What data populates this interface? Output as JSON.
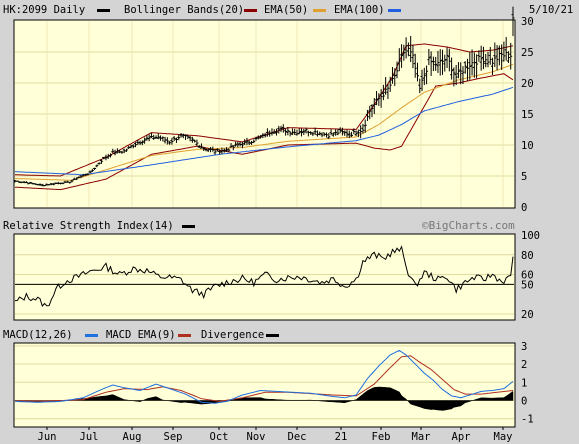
{
  "header": {
    "ticker": "HK:2099 Daily",
    "legend": [
      {
        "label": "Bollinger Bands(20)",
        "color": "#8b0000"
      },
      {
        "label": "EMA(50)",
        "color": "#e0a030"
      },
      {
        "label": "EMA(100)",
        "color": "#2060e0"
      }
    ],
    "date": "5/10/21"
  },
  "rsi_panel": {
    "title": "Relative Strength Index(14)",
    "credit": "©BigCharts.com"
  },
  "macd_panel": {
    "legend": [
      {
        "label": "MACD(12,26)",
        "color": "#2070e0"
      },
      {
        "label": "MACD EMA(9)",
        "color": "#b03020"
      },
      {
        "label": "Divergence",
        "color": "#000000"
      }
    ]
  },
  "colors": {
    "panel_bg": "#ffffd8",
    "frame_bg": "#d4d4d4",
    "price": "#000000",
    "bollinger": "#8b0000",
    "ema50": "#e0a030",
    "ema100": "#2060e0",
    "macd": "#2070e0",
    "signal": "#b03020"
  },
  "chart_data": [
    {
      "type": "line",
      "name": "price",
      "x_labels": [
        "Jun",
        "Jul",
        "Aug",
        "Sep",
        "Oct",
        "Nov",
        "Dec",
        "21",
        "Feb",
        "Mar",
        "Apr",
        "May"
      ],
      "y_ticks": [
        0,
        5,
        10,
        15,
        20,
        25,
        30
      ],
      "ylim": [
        0,
        30
      ],
      "close_anchors": [
        [
          0,
          4.2
        ],
        [
          6,
          3.9
        ],
        [
          12,
          3.5
        ],
        [
          18,
          3.8
        ],
        [
          24,
          4.0
        ],
        [
          28,
          4.8
        ],
        [
          33,
          5.5
        ],
        [
          38,
          7.5
        ],
        [
          43,
          8.8
        ],
        [
          48,
          9.0
        ],
        [
          53,
          10.2
        ],
        [
          58,
          11.0
        ],
        [
          63,
          11.3
        ],
        [
          68,
          10.5
        ],
        [
          73,
          11.5
        ],
        [
          78,
          10.8
        ],
        [
          83,
          9.5
        ],
        [
          88,
          9.0
        ],
        [
          93,
          9.2
        ],
        [
          98,
          10.0
        ],
        [
          103,
          10.5
        ],
        [
          108,
          11.2
        ],
        [
          113,
          12.3
        ],
        [
          118,
          12.5
        ],
        [
          123,
          12.0
        ],
        [
          128,
          12.3
        ],
        [
          133,
          12.0
        ],
        [
          138,
          11.6
        ],
        [
          143,
          12.1
        ],
        [
          148,
          11.8
        ],
        [
          153,
          12.5
        ],
        [
          156,
          15.5
        ],
        [
          160,
          17.5
        ],
        [
          164,
          19.0
        ],
        [
          167,
          21.0
        ],
        [
          170,
          24.0
        ],
        [
          172,
          26.0
        ],
        [
          175,
          24.0
        ],
        [
          178,
          19.0
        ],
        [
          182,
          23.5
        ],
        [
          186,
          23.0
        ],
        [
          190,
          24.0
        ],
        [
          194,
          21.0
        ],
        [
          198,
          22.5
        ],
        [
          202,
          23.5
        ],
        [
          206,
          24.0
        ],
        [
          210,
          23.5
        ],
        [
          214,
          24.5
        ],
        [
          218,
          24.5
        ],
        [
          219,
          30.5
        ]
      ],
      "ema50_anchors": [
        [
          0,
          4.6
        ],
        [
          25,
          4.3
        ],
        [
          40,
          6.0
        ],
        [
          60,
          8.3
        ],
        [
          80,
          9.3
        ],
        [
          100,
          9.6
        ],
        [
          120,
          10.6
        ],
        [
          150,
          11.3
        ],
        [
          160,
          13.3
        ],
        [
          170,
          16.0
        ],
        [
          180,
          18.5
        ],
        [
          195,
          20.5
        ],
        [
          210,
          21.8
        ],
        [
          219,
          23.0
        ]
      ],
      "ema100_anchors": [
        [
          0,
          5.7
        ],
        [
          30,
          5.2
        ],
        [
          60,
          6.8
        ],
        [
          90,
          8.5
        ],
        [
          120,
          9.7
        ],
        [
          150,
          10.7
        ],
        [
          160,
          11.6
        ],
        [
          170,
          13.3
        ],
        [
          180,
          15.5
        ],
        [
          195,
          17.0
        ],
        [
          210,
          18.2
        ],
        [
          219,
          19.3
        ]
      ],
      "bb_upper_anchors": [
        [
          0,
          5.2
        ],
        [
          20,
          5.0
        ],
        [
          40,
          8.0
        ],
        [
          60,
          12.0
        ],
        [
          80,
          11.5
        ],
        [
          100,
          10.5
        ],
        [
          120,
          12.8
        ],
        [
          150,
          12.5
        ],
        [
          158,
          16.5
        ],
        [
          166,
          21.0
        ],
        [
          172,
          26.0
        ],
        [
          180,
          26.3
        ],
        [
          190,
          25.8
        ],
        [
          200,
          25.0
        ],
        [
          210,
          25.3
        ],
        [
          219,
          26.0
        ]
      ],
      "bb_lower_anchors": [
        [
          0,
          3.2
        ],
        [
          20,
          2.8
        ],
        [
          40,
          4.5
        ],
        [
          60,
          8.5
        ],
        [
          80,
          9.8
        ],
        [
          100,
          8.5
        ],
        [
          120,
          10.0
        ],
        [
          150,
          10.3
        ],
        [
          158,
          9.5
        ],
        [
          165,
          9.2
        ],
        [
          170,
          9.8
        ],
        [
          175,
          13.0
        ],
        [
          185,
          19.5
        ],
        [
          195,
          20.0
        ],
        [
          205,
          20.8
        ],
        [
          215,
          21.5
        ],
        [
          219,
          20.5
        ]
      ]
    },
    {
      "type": "line",
      "name": "RSI(14)",
      "y_ticks": [
        20,
        50,
        60,
        80,
        100
      ],
      "ylim": [
        15,
        100
      ],
      "reference_line": 50,
      "anchors": [
        [
          0,
          32
        ],
        [
          5,
          38
        ],
        [
          10,
          35
        ],
        [
          14,
          27
        ],
        [
          18,
          45
        ],
        [
          22,
          53
        ],
        [
          28,
          58
        ],
        [
          33,
          63
        ],
        [
          40,
          68
        ],
        [
          46,
          60
        ],
        [
          52,
          66
        ],
        [
          58,
          64
        ],
        [
          63,
          58
        ],
        [
          68,
          57
        ],
        [
          73,
          55
        ],
        [
          78,
          44
        ],
        [
          83,
          40
        ],
        [
          88,
          48
        ],
        [
          93,
          52
        ],
        [
          100,
          56
        ],
        [
          105,
          52
        ],
        [
          110,
          60
        ],
        [
          115,
          55
        ],
        [
          120,
          57
        ],
        [
          125,
          58
        ],
        [
          130,
          55
        ],
        [
          135,
          52
        ],
        [
          140,
          56
        ],
        [
          145,
          48
        ],
        [
          150,
          55
        ],
        [
          153,
          73
        ],
        [
          158,
          80
        ],
        [
          162,
          76
        ],
        [
          166,
          83
        ],
        [
          170,
          85
        ],
        [
          173,
          62
        ],
        [
          176,
          48
        ],
        [
          180,
          62
        ],
        [
          186,
          55
        ],
        [
          190,
          58
        ],
        [
          194,
          45
        ],
        [
          198,
          52
        ],
        [
          202,
          57
        ],
        [
          206,
          55
        ],
        [
          210,
          60
        ],
        [
          214,
          53
        ],
        [
          218,
          57
        ],
        [
          219,
          78
        ]
      ]
    },
    {
      "type": "line",
      "name": "MACD(12,26)",
      "y_ticks": [
        -1,
        0,
        1,
        2,
        3
      ],
      "ylim": [
        -1.4,
        3.1
      ],
      "macd_anchors": [
        [
          0,
          -0.05
        ],
        [
          10,
          -0.1
        ],
        [
          20,
          -0.05
        ],
        [
          30,
          0.15
        ],
        [
          38,
          0.6
        ],
        [
          43,
          0.85
        ],
        [
          48,
          0.7
        ],
        [
          55,
          0.55
        ],
        [
          62,
          0.9
        ],
        [
          68,
          0.65
        ],
        [
          75,
          0.35
        ],
        [
          82,
          -0.1
        ],
        [
          88,
          -0.15
        ],
        [
          93,
          -0.05
        ],
        [
          100,
          0.3
        ],
        [
          108,
          0.55
        ],
        [
          115,
          0.5
        ],
        [
          122,
          0.45
        ],
        [
          130,
          0.4
        ],
        [
          138,
          0.25
        ],
        [
          145,
          0.15
        ],
        [
          150,
          0.3
        ],
        [
          155,
          1.2
        ],
        [
          160,
          1.9
        ],
        [
          165,
          2.5
        ],
        [
          169,
          2.75
        ],
        [
          172,
          2.5
        ],
        [
          176,
          2.0
        ],
        [
          180,
          1.5
        ],
        [
          184,
          1.1
        ],
        [
          188,
          0.6
        ],
        [
          192,
          0.25
        ],
        [
          196,
          0.15
        ],
        [
          200,
          0.3
        ],
        [
          205,
          0.5
        ],
        [
          210,
          0.55
        ],
        [
          215,
          0.65
        ],
        [
          219,
          1.05
        ]
      ],
      "signal_anchors": [
        [
          0,
          -0.02
        ],
        [
          15,
          -0.03
        ],
        [
          30,
          0.05
        ],
        [
          40,
          0.45
        ],
        [
          48,
          0.65
        ],
        [
          58,
          0.6
        ],
        [
          65,
          0.75
        ],
        [
          73,
          0.55
        ],
        [
          82,
          0.1
        ],
        [
          90,
          -0.05
        ],
        [
          100,
          0.15
        ],
        [
          110,
          0.45
        ],
        [
          120,
          0.45
        ],
        [
          130,
          0.38
        ],
        [
          140,
          0.3
        ],
        [
          150,
          0.25
        ],
        [
          158,
          0.9
        ],
        [
          165,
          1.8
        ],
        [
          170,
          2.4
        ],
        [
          174,
          2.45
        ],
        [
          178,
          2.1
        ],
        [
          183,
          1.7
        ],
        [
          188,
          1.15
        ],
        [
          193,
          0.6
        ],
        [
          198,
          0.35
        ],
        [
          205,
          0.35
        ],
        [
          212,
          0.45
        ],
        [
          219,
          0.55
        ]
      ]
    }
  ]
}
